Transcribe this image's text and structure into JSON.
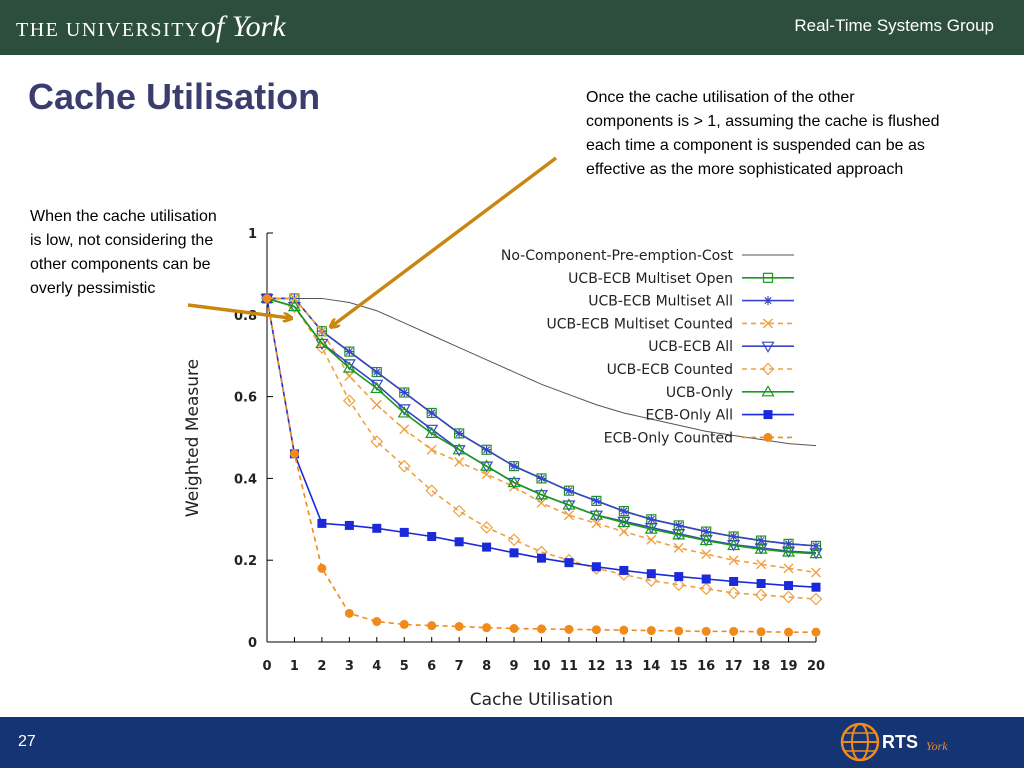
{
  "header": {
    "logo_text_part1": "THE UNIVERSITY",
    "logo_text_part2": "of York",
    "group": "Real-Time Systems Group"
  },
  "slide": {
    "title": "Cache Utilisation",
    "note_right": "Once the cache utilisation of the other components is > 1, assuming the cache is flushed each time a component is suspended can be as effective as the more sophisticated approach",
    "note_left": "When the cache utilisation is low, not considering the other components can be overly pessimistic",
    "page_number": "27",
    "footer_logo_text": "RTS",
    "footer_logo_sub": "York"
  },
  "colors": {
    "header_bg": "#2d4e3d",
    "footer_bg": "#143474",
    "title": "#3a3d6e",
    "arrow": "#c8870e"
  },
  "chart_data": {
    "type": "line",
    "title": "",
    "xlabel": "Cache Utilisation",
    "ylabel": "Weighted Measure",
    "xlim": [
      0,
      20
    ],
    "ylim": [
      0,
      1
    ],
    "x": [
      0,
      1,
      2,
      3,
      4,
      5,
      6,
      7,
      8,
      9,
      10,
      11,
      12,
      13,
      14,
      15,
      16,
      17,
      18,
      19,
      20
    ],
    "xticks": [
      "0",
      "1",
      "2",
      "3",
      "4",
      "5",
      "6",
      "7",
      "8",
      "9",
      "10",
      "11",
      "12",
      "13",
      "14",
      "15",
      "16",
      "17",
      "18",
      "19",
      "20"
    ],
    "yticks": [
      {
        "value": 0,
        "label": "0"
      },
      {
        "value": 0.2,
        "label": "0.2"
      },
      {
        "value": 0.4,
        "label": "0.4"
      },
      {
        "value": 0.6,
        "label": "0.6"
      },
      {
        "value": 0.8,
        "label": "0.8"
      },
      {
        "value": 1,
        "label": "1"
      }
    ],
    "legend_position": "top-right",
    "series": [
      {
        "name": "No-Component-Pre-emption-Cost",
        "color": "#555555",
        "dash": "solid",
        "marker": "none",
        "values": [
          0.84,
          0.84,
          0.84,
          0.83,
          0.81,
          0.78,
          0.75,
          0.72,
          0.69,
          0.66,
          0.63,
          0.605,
          0.58,
          0.56,
          0.545,
          0.53,
          0.515,
          0.505,
          0.495,
          0.485,
          0.48
        ]
      },
      {
        "name": "UCB-ECB Multiset Open",
        "color": "#1a9a1a",
        "dash": "solid",
        "marker": "square",
        "values": [
          0.84,
          0.84,
          0.76,
          0.71,
          0.66,
          0.61,
          0.56,
          0.51,
          0.47,
          0.43,
          0.4,
          0.37,
          0.345,
          0.32,
          0.3,
          0.285,
          0.27,
          0.258,
          0.248,
          0.24,
          0.235
        ]
      },
      {
        "name": "UCB-ECB Multiset All",
        "color": "#3a44c8",
        "dash": "solid",
        "marker": "star",
        "values": [
          0.84,
          0.84,
          0.76,
          0.71,
          0.66,
          0.61,
          0.56,
          0.51,
          0.47,
          0.43,
          0.4,
          0.37,
          0.345,
          0.32,
          0.3,
          0.285,
          0.27,
          0.258,
          0.248,
          0.24,
          0.235
        ]
      },
      {
        "name": "UCB-ECB Multiset Counted",
        "color": "#f0a040",
        "dash": "dashed",
        "marker": "x",
        "values": [
          0.84,
          0.84,
          0.76,
          0.65,
          0.58,
          0.52,
          0.47,
          0.44,
          0.41,
          0.38,
          0.34,
          0.31,
          0.29,
          0.27,
          0.25,
          0.23,
          0.215,
          0.2,
          0.19,
          0.18,
          0.17
        ]
      },
      {
        "name": "UCB-ECB All",
        "color": "#3a44c8",
        "dash": "solid",
        "marker": "triangle-down",
        "values": [
          0.84,
          0.82,
          0.73,
          0.68,
          0.63,
          0.57,
          0.52,
          0.47,
          0.43,
          0.39,
          0.36,
          0.335,
          0.31,
          0.295,
          0.28,
          0.265,
          0.25,
          0.238,
          0.23,
          0.222,
          0.218
        ]
      },
      {
        "name": "UCB-ECB Counted",
        "color": "#f0a040",
        "dash": "dashed",
        "marker": "diamond",
        "values": [
          0.84,
          0.82,
          0.72,
          0.59,
          0.49,
          0.43,
          0.37,
          0.32,
          0.28,
          0.25,
          0.22,
          0.2,
          0.18,
          0.165,
          0.15,
          0.14,
          0.13,
          0.12,
          0.115,
          0.11,
          0.105
        ]
      },
      {
        "name": "UCB-Only",
        "color": "#1a9a1a",
        "dash": "solid",
        "marker": "triangle",
        "values": [
          0.84,
          0.82,
          0.73,
          0.67,
          0.62,
          0.56,
          0.51,
          0.47,
          0.43,
          0.39,
          0.36,
          0.335,
          0.31,
          0.292,
          0.276,
          0.262,
          0.248,
          0.236,
          0.227,
          0.22,
          0.216
        ]
      },
      {
        "name": "ECB-Only All",
        "color": "#1a2ad8",
        "dash": "solid",
        "marker": "filled-square",
        "values": [
          0.84,
          0.46,
          0.29,
          0.285,
          0.278,
          0.268,
          0.258,
          0.245,
          0.232,
          0.218,
          0.205,
          0.194,
          0.184,
          0.175,
          0.167,
          0.16,
          0.154,
          0.148,
          0.143,
          0.138,
          0.134
        ]
      },
      {
        "name": "ECB-Only Counted",
        "color": "#f08a1a",
        "dash": "dashed",
        "marker": "filled-circle",
        "values": [
          0.84,
          0.46,
          0.18,
          0.07,
          0.05,
          0.043,
          0.04,
          0.038,
          0.035,
          0.033,
          0.032,
          0.031,
          0.03,
          0.029,
          0.028,
          0.027,
          0.026,
          0.026,
          0.025,
          0.024,
          0.024
        ]
      }
    ],
    "annotations": [
      {
        "text_ref": "slide.note_left",
        "points_to": {
          "x": 1,
          "y": 0.8
        }
      },
      {
        "text_ref": "slide.note_right",
        "points_to": {
          "x": 2,
          "y": 0.77
        }
      }
    ]
  }
}
